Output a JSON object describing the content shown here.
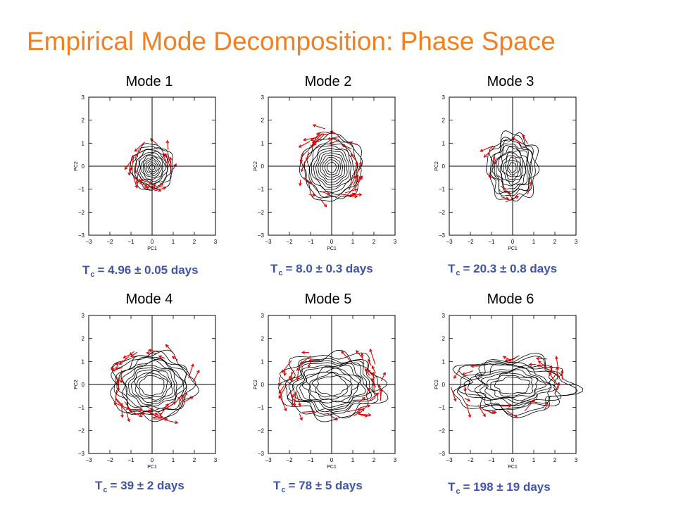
{
  "title": "Empirical Mode Decomposition: Phase Space",
  "colors": {
    "title": "#f47f20",
    "timescale": "#3f54a8",
    "arrows": "#dd0000",
    "contours": "#000000"
  },
  "axes": {
    "xlabel": "PC1",
    "ylabel": "PC2",
    "ticks": [
      "−3",
      "−2",
      "−1",
      "0",
      "1",
      "2",
      "3"
    ],
    "tick_values": [
      -3,
      -2,
      -1,
      0,
      1,
      2,
      3
    ]
  },
  "chart_data": [
    {
      "type": "scatter",
      "title": "Mode 1",
      "timescale": {
        "symbol": "T",
        "subscript": "c",
        "text": "= 4.96 ± 0.05 days"
      },
      "xlabel": "PC1",
      "ylabel": "PC2",
      "xlim": [
        -3,
        3
      ],
      "ylim": [
        -3,
        3
      ]
    },
    {
      "type": "scatter",
      "title": "Mode 2",
      "timescale": {
        "symbol": "T",
        "subscript": "c",
        "text": "= 8.0 ± 0.3 days"
      },
      "xlabel": "PC1",
      "ylabel": "PC2",
      "xlim": [
        -3,
        3
      ],
      "ylim": [
        -3,
        3
      ]
    },
    {
      "type": "scatter",
      "title": "Mode 3",
      "timescale": {
        "symbol": "T",
        "subscript": "c",
        "text": "= 20.3 ± 0.8 days"
      },
      "xlabel": "PC1",
      "ylabel": "PC2",
      "xlim": [
        -3,
        3
      ],
      "ylim": [
        -3,
        3
      ]
    },
    {
      "type": "scatter",
      "title": "Mode 4",
      "timescale": {
        "symbol": "T",
        "subscript": "c",
        "text": "= 39 ± 2 days"
      },
      "xlabel": "PC1",
      "ylabel": "PC2",
      "xlim": [
        -3,
        3
      ],
      "ylim": [
        -3,
        3
      ]
    },
    {
      "type": "scatter",
      "title": "Mode 5",
      "timescale": {
        "symbol": "T",
        "subscript": "c",
        "text": "= 78 ± 5 days"
      },
      "xlabel": "PC1",
      "ylabel": "PC2",
      "xlim": [
        -3,
        3
      ],
      "ylim": [
        -3,
        3
      ]
    },
    {
      "type": "scatter",
      "title": "Mode 6",
      "timescale": {
        "symbol": "T",
        "subscript": "c",
        "text": "= 198 ± 19 days"
      },
      "xlabel": "PC1",
      "ylabel": "PC2",
      "xlim": [
        -3,
        3
      ],
      "ylim": [
        -3,
        3
      ]
    }
  ]
}
